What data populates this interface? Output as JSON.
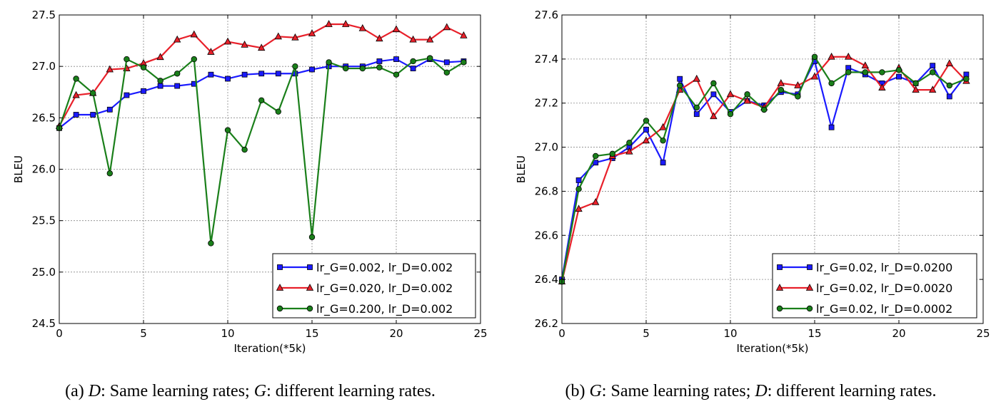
{
  "chart_data": [
    {
      "type": "line",
      "caption": {
        "prefix": "(a) ",
        "var1": "D",
        "text1": ": Same learning rates; ",
        "var2": "G",
        "text2": ": different learning rates."
      },
      "xlabel": "Iteration(*5k)",
      "ylabel": "BLEU",
      "xlim": [
        0,
        25
      ],
      "ylim": [
        24.5,
        27.5
      ],
      "xticks": [
        0,
        5,
        10,
        15,
        20,
        25
      ],
      "yticks": [
        24.5,
        25.0,
        25.5,
        26.0,
        26.5,
        27.0,
        27.5
      ],
      "ytick_labels": [
        "24.5",
        "25.0",
        "25.5",
        "26.0",
        "26.5",
        "27.0",
        "27.5"
      ],
      "grid": true,
      "legend_position": "lower-right",
      "x": [
        0,
        1,
        2,
        3,
        4,
        5,
        6,
        7,
        8,
        9,
        10,
        11,
        12,
        13,
        14,
        15,
        16,
        17,
        18,
        19,
        20,
        21,
        22,
        23,
        24
      ],
      "series": [
        {
          "name": "lr_G=0.002, lr_D=0.002",
          "color": "#1a1aff",
          "marker": "square",
          "values": [
            26.4,
            26.53,
            26.53,
            26.58,
            26.72,
            26.76,
            26.81,
            26.81,
            26.83,
            26.92,
            26.88,
            26.92,
            26.93,
            26.93,
            26.93,
            26.97,
            27.0,
            27.0,
            27.0,
            27.05,
            27.07,
            26.98,
            27.07,
            27.04,
            27.05
          ]
        },
        {
          "name": "lr_G=0.020, lr_D=0.002",
          "color": "#e8202a",
          "marker": "triangle",
          "values": [
            26.42,
            26.72,
            26.74,
            26.97,
            26.98,
            27.03,
            27.09,
            27.26,
            27.31,
            27.14,
            27.24,
            27.21,
            27.18,
            27.29,
            27.28,
            27.32,
            27.41,
            27.41,
            27.37,
            27.27,
            27.36,
            27.26,
            27.26,
            27.38,
            27.3
          ]
        },
        {
          "name": "lr_G=0.200, lr_D=0.002",
          "color": "#1a7f1a",
          "marker": "circle",
          "values": [
            26.4,
            26.88,
            26.74,
            25.96,
            27.07,
            26.99,
            26.86,
            26.93,
            27.07,
            25.28,
            26.38,
            26.19,
            26.67,
            26.56,
            27.0,
            25.34,
            27.04,
            26.98,
            26.98,
            26.99,
            26.92,
            27.05,
            27.08,
            26.94,
            27.04
          ]
        }
      ]
    },
    {
      "type": "line",
      "caption": {
        "prefix": "(b) ",
        "var1": "G",
        "text1": ": Same learning rates; ",
        "var2": "D",
        "text2": ": different learning rates."
      },
      "xlabel": "Iteration(*5k)",
      "ylabel": "BLEU",
      "xlim": [
        0,
        25
      ],
      "ylim": [
        26.2,
        27.6
      ],
      "xticks": [
        0,
        5,
        10,
        15,
        20,
        25
      ],
      "yticks": [
        26.2,
        26.4,
        26.6,
        26.8,
        27.0,
        27.2,
        27.4,
        27.6
      ],
      "ytick_labels": [
        "26.2",
        "26.4",
        "26.6",
        "26.8",
        "27.0",
        "27.2",
        "27.4",
        "27.6"
      ],
      "grid": true,
      "legend_position": "lower-right",
      "x": [
        0,
        1,
        2,
        3,
        4,
        5,
        6,
        7,
        8,
        9,
        10,
        11,
        12,
        13,
        14,
        15,
        16,
        17,
        18,
        19,
        20,
        21,
        22,
        23,
        24
      ],
      "series": [
        {
          "name": "lr_G=0.02, lr_D=0.0200",
          "color": "#1a1aff",
          "marker": "square",
          "values": [
            26.4,
            26.85,
            26.93,
            26.95,
            27.0,
            27.08,
            26.93,
            27.31,
            27.15,
            27.24,
            27.16,
            27.21,
            27.19,
            27.25,
            27.24,
            27.39,
            27.09,
            27.36,
            27.33,
            27.29,
            27.32,
            27.29,
            27.37,
            27.23,
            27.33
          ]
        },
        {
          "name": "lr_G=0.02, lr_D=0.0020",
          "color": "#e8202a",
          "marker": "triangle",
          "values": [
            26.39,
            26.72,
            26.75,
            26.96,
            26.98,
            27.03,
            27.09,
            27.26,
            27.31,
            27.14,
            27.24,
            27.21,
            27.18,
            27.29,
            27.28,
            27.32,
            27.41,
            27.41,
            27.37,
            27.27,
            27.36,
            27.26,
            27.26,
            27.38,
            27.3
          ]
        },
        {
          "name": "lr_G=0.02, lr_D=0.0002",
          "color": "#1a7f1a",
          "marker": "circle",
          "values": [
            26.39,
            26.81,
            26.96,
            26.97,
            27.02,
            27.12,
            27.03,
            27.28,
            27.18,
            27.29,
            27.15,
            27.24,
            27.17,
            27.26,
            27.23,
            27.41,
            27.29,
            27.34,
            27.34,
            27.34,
            27.35,
            27.29,
            27.34,
            27.28,
            27.31
          ]
        }
      ]
    }
  ]
}
